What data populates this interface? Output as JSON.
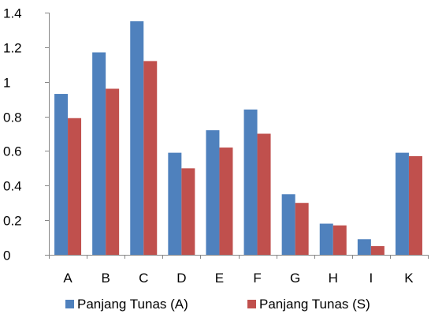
{
  "chart_data": {
    "type": "bar",
    "categories": [
      "A",
      "B",
      "C",
      "D",
      "E",
      "F",
      "G",
      "H",
      "I",
      "K"
    ],
    "series": [
      {
        "name": "Panjang Tunas (A)",
        "color": "#4f81bd",
        "values": [
          0.93,
          1.17,
          1.35,
          0.59,
          0.72,
          0.84,
          0.35,
          0.18,
          0.09,
          0.59
        ]
      },
      {
        "name": "Panjang Tunas (S)",
        "color": "#c0504d",
        "values": [
          0.79,
          0.96,
          1.12,
          0.5,
          0.62,
          0.7,
          0.3,
          0.17,
          0.05,
          0.57
        ]
      }
    ],
    "yticks": [
      "0",
      "0.2",
      "0.4",
      "0.6",
      "0.8",
      "1",
      "1.2",
      "1.4"
    ],
    "ylim": [
      0,
      1.4
    ],
    "grid": false,
    "legend_position": "bottom"
  }
}
